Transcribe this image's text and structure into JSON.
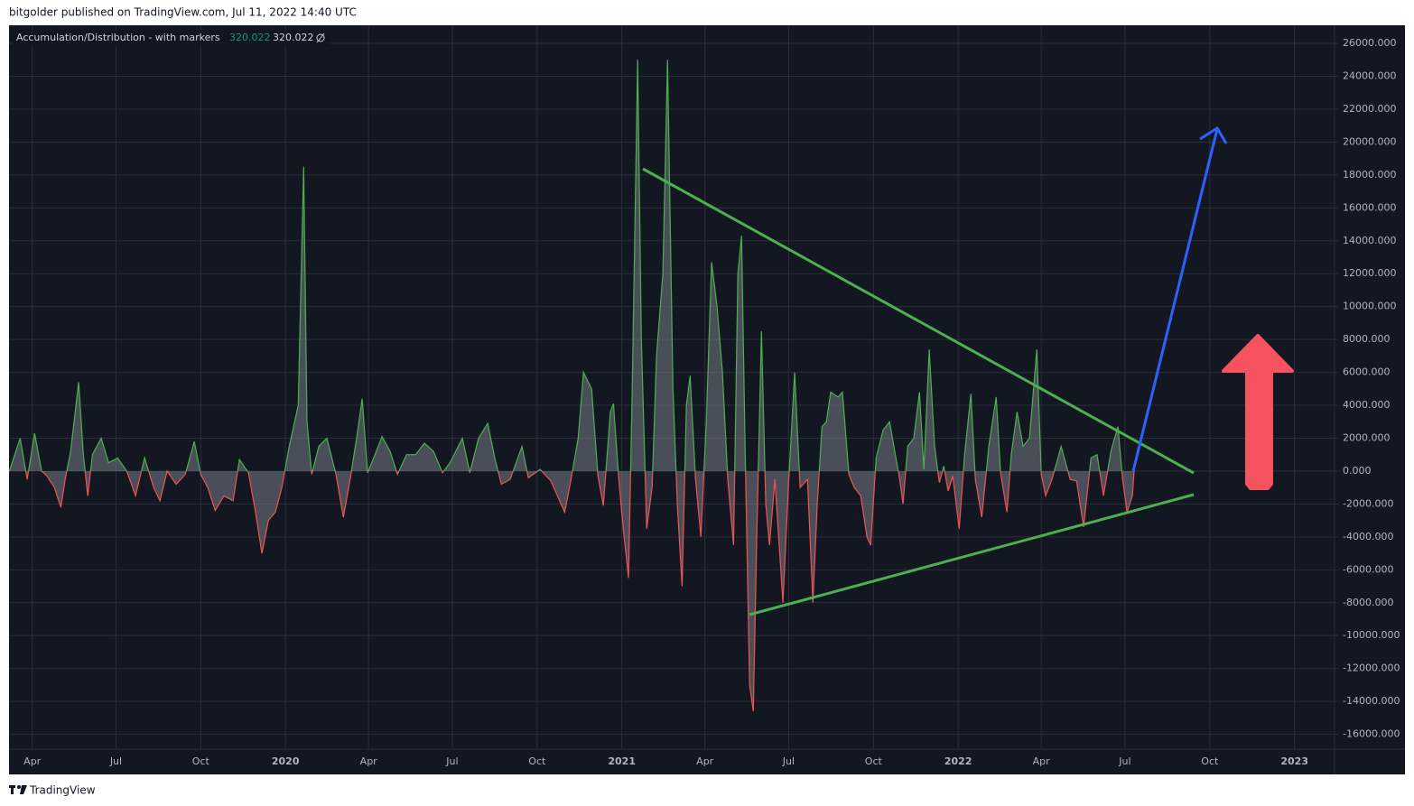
{
  "header": "bitgolder published on TradingView.com, Jul 11, 2022 14:40 UTC",
  "footer": "TradingView",
  "chart_data": {
    "type": "area",
    "title": "Accumulation/Distribution - with markers",
    "legend_values": [
      320.022,
      320.022
    ],
    "up_color": "#4caf50",
    "down_color": "#ef5350",
    "fill_color": "#787b86",
    "grid": true,
    "xlim": [
      2019.178,
      2023.119
    ],
    "ylim": [
      -16900,
      27100
    ],
    "xticks": [
      {
        "value": 2019.247,
        "label": "Apr"
      },
      {
        "value": 2019.496,
        "label": "Jul"
      },
      {
        "value": 2019.748,
        "label": "Oct"
      },
      2020,
      {
        "value": 2020.247,
        "label": "Apr"
      },
      {
        "value": 2020.496,
        "label": "Jul"
      },
      {
        "value": 2020.748,
        "label": "Oct"
      },
      2021,
      {
        "value": 2021.247,
        "label": "Apr"
      },
      {
        "value": 2021.496,
        "label": "Jul"
      },
      {
        "value": 2021.748,
        "label": "Oct"
      },
      2022,
      {
        "value": 2022.247,
        "label": "Apr"
      },
      {
        "value": 2022.496,
        "label": "Jul"
      },
      {
        "value": 2022.748,
        "label": "Oct"
      },
      2023
    ],
    "yticks": [
      {
        "value": -16000,
        "label": "-16000.000"
      },
      {
        "value": -14000,
        "label": "-14000.000"
      },
      {
        "value": -12000,
        "label": "-12000.000"
      },
      {
        "value": -10000,
        "label": "-10000.000"
      },
      {
        "value": -8000,
        "label": "-8000.000"
      },
      {
        "value": -6000,
        "label": "-6000.000"
      },
      {
        "value": -4000,
        "label": "-4000.000"
      },
      {
        "value": -2000,
        "label": "-2000.000"
      },
      {
        "value": 0,
        "label": "0.000"
      },
      {
        "value": 2000,
        "label": "2000.000"
      },
      {
        "value": 4000,
        "label": "4000.000"
      },
      {
        "value": 6000,
        "label": "6000.000"
      },
      {
        "value": 8000,
        "label": "8000.000"
      },
      {
        "value": 10000,
        "label": "10000.000"
      },
      {
        "value": 12000,
        "label": "12000.000"
      },
      {
        "value": 14000,
        "label": "14000.000"
      },
      {
        "value": 16000,
        "label": "16000.000"
      },
      {
        "value": 18000,
        "label": "18000.000"
      },
      {
        "value": 20000,
        "label": "20000.000"
      },
      {
        "value": 22000,
        "label": "22000.000"
      },
      {
        "value": 24000,
        "label": "24000.000"
      },
      {
        "value": 26000,
        "label": "26000.000"
      }
    ],
    "x": [
      2019.179,
      2019.211,
      2019.232,
      2019.254,
      2019.275,
      2019.291,
      2019.313,
      2019.332,
      2019.345,
      2019.361,
      2019.385,
      2019.399,
      2019.412,
      2019.426,
      2019.452,
      2019.474,
      2019.501,
      2019.528,
      2019.554,
      2019.581,
      2019.608,
      2019.627,
      2019.648,
      2019.675,
      2019.702,
      2019.729,
      2019.748,
      2019.769,
      2019.791,
      2019.817,
      2019.844,
      2019.863,
      2019.89,
      2019.911,
      2019.93,
      2019.949,
      2019.97,
      2019.989,
      2020.011,
      2020.038,
      2020.054,
      2020.064,
      2020.078,
      2020.099,
      2020.123,
      2020.15,
      2020.172,
      2020.193,
      2020.215,
      2020.228,
      2020.244,
      2020.266,
      2020.287,
      2020.311,
      2020.333,
      2020.36,
      2020.387,
      2020.413,
      2020.44,
      2020.467,
      2020.489,
      2020.526,
      2020.548,
      2020.574,
      2020.601,
      2020.623,
      2020.642,
      2020.668,
      2020.703,
      2020.722,
      2020.757,
      2020.789,
      2020.83,
      2020.848,
      2020.87,
      2020.886,
      2020.91,
      2020.929,
      2020.945,
      2020.966,
      2020.975,
      2020.991,
      2021.004,
      2021.02,
      2021.031,
      2021.047,
      2021.058,
      2021.074,
      2021.09,
      2021.103,
      2021.122,
      2021.136,
      2021.152,
      2021.165,
      2021.179,
      2021.192,
      2021.203,
      2021.219,
      2021.235,
      2021.251,
      2021.267,
      2021.283,
      2021.299,
      2021.315,
      2021.332,
      2021.345,
      2021.356,
      2021.366,
      2021.38,
      2021.391,
      2021.401,
      2021.415,
      2021.428,
      2021.439,
      2021.455,
      2021.479,
      2021.495,
      2021.514,
      2021.53,
      2021.552,
      2021.568,
      2021.581,
      2021.595,
      2021.608,
      2021.621,
      2021.643,
      2021.656,
      2021.675,
      2021.691,
      2021.71,
      2021.729,
      2021.74,
      2021.756,
      2021.777,
      2021.796,
      2021.809,
      2021.826,
      2021.836,
      2021.85,
      2021.868,
      2021.885,
      2021.898,
      2021.914,
      2021.93,
      2021.944,
      2021.957,
      2021.97,
      2021.984,
      2022.003,
      2022.019,
      2022.038,
      2022.051,
      2022.07,
      2022.091,
      2022.113,
      2022.126,
      2022.145,
      2022.158,
      2022.175,
      2022.193,
      2022.212,
      2022.234,
      2022.247,
      2022.26,
      2022.279,
      2022.306,
      2022.333,
      2022.352,
      2022.373,
      2022.395,
      2022.413,
      2022.432,
      2022.454,
      2022.475,
      2022.489,
      2022.502,
      2022.518,
      2022.524
    ],
    "values": [
      0,
      2000,
      -500,
      2300,
      0,
      -300,
      -1000,
      -2200,
      -500,
      1200,
      5400,
      1000,
      -1500,
      1000,
      2000,
      500,
      800,
      0,
      -1500,
      800,
      -1000,
      -1800,
      0,
      -800,
      -200,
      1800,
      -200,
      -1000,
      -2400,
      -1500,
      -1800,
      700,
      -100,
      -2500,
      -5000,
      -3000,
      -2500,
      -1000,
      1500,
      4000,
      18500,
      3000,
      -200,
      1500,
      2000,
      -200,
      -2800,
      -400,
      2500,
      4400,
      -100,
      1000,
      2100,
      1200,
      -200,
      1000,
      1000,
      1700,
      1200,
      -100,
      500,
      2000,
      -100,
      2000,
      2900,
      700,
      -800,
      -500,
      1500,
      -400,
      100,
      -600,
      -2500,
      -600,
      2000,
      6000,
      5000,
      -300,
      -2100,
      3600,
      4100,
      -500,
      -3500,
      -6500,
      5000,
      25000,
      8000,
      -3500,
      -1000,
      7000,
      12000,
      25000,
      5000,
      -2000,
      -7000,
      4000,
      5800,
      -500,
      -4000,
      3000,
      12700,
      10000,
      6000,
      -500,
      -4500,
      12000,
      14300,
      2000,
      -13000,
      -14600,
      -4000,
      8500,
      -2000,
      -4500,
      -500,
      -8000,
      -1000,
      6000,
      -1000,
      -500,
      -8000,
      -2000,
      2700,
      3000,
      4800,
      4500,
      4800,
      -200,
      -1000,
      -1500,
      -4000,
      -4500,
      800,
      2500,
      3000,
      1500,
      -500,
      -2000,
      1500,
      2000,
      4800,
      100,
      7400,
      1500,
      -700,
      300,
      -1200,
      -300,
      -3500,
      1000,
      4700,
      -500,
      -2800,
      1500,
      4500,
      -100,
      -2500,
      1000,
      3600,
      1500,
      2000,
      7400,
      -200,
      -1500,
      -500,
      1500,
      -500,
      -600,
      -3400,
      800,
      1000,
      -1500,
      1200,
      2700,
      -500,
      -2500,
      -1500,
      320.022
    ]
  }
}
